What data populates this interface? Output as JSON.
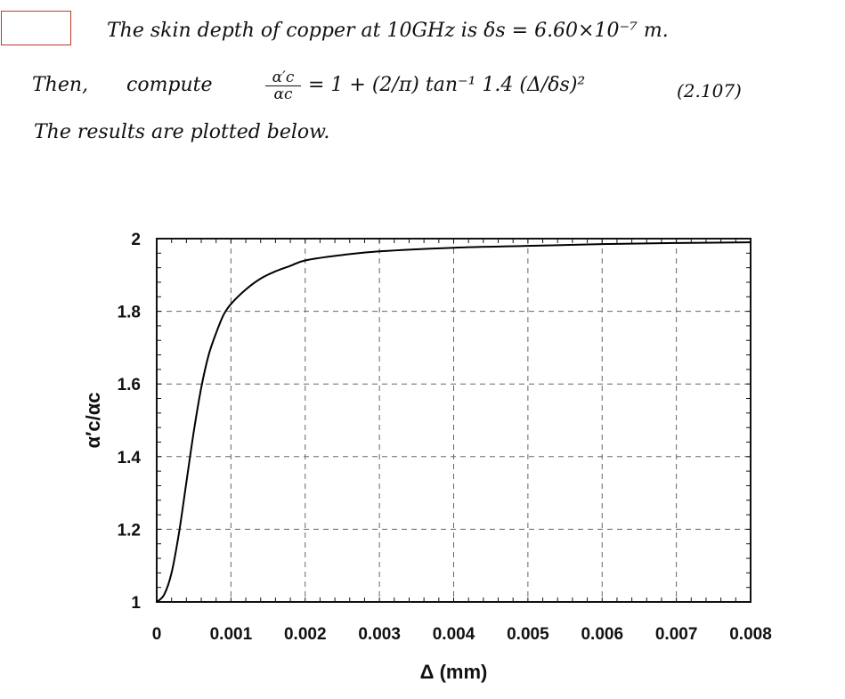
{
  "handwritten_notes": {
    "line1": "The skin depth of copper at 10GHz is δs = 6.60×10⁻⁷ m.",
    "line2_prefix": "Then,",
    "line2_verb": "compute",
    "frac_num": "α′c",
    "frac_den": "αc",
    "line2_rhs": "= 1 + (2/π) tan⁻¹ 1.4 (Δ/δs)²",
    "eq_number": "(2.107)",
    "line3": "The results are plotted below."
  },
  "chart_data": {
    "type": "line",
    "title": "",
    "xlabel": "Δ (mm)",
    "ylabel": "α′c/αc",
    "xlim": [
      0,
      0.008
    ],
    "ylim": [
      1,
      2
    ],
    "xticks": [
      "0",
      "0.001",
      "0.002",
      "0.003",
      "0.004",
      "0.005",
      "0.006",
      "0.007",
      "0.008"
    ],
    "yticks": [
      "1",
      "1.2",
      "1.4",
      "1.6",
      "1.8",
      "2"
    ],
    "grid": true,
    "series": [
      {
        "x": [
          0,
          0.0001,
          0.0002,
          0.0003,
          0.0004,
          0.0005,
          0.0006,
          0.0007,
          0.0008,
          0.0009,
          0.001,
          0.0012,
          0.0014,
          0.0016,
          0.0018,
          0.002,
          0.0025,
          0.003,
          0.004,
          0.005,
          0.006,
          0.007,
          0.008
        ],
        "y": [
          1.0,
          1.02,
          1.08,
          1.19,
          1.33,
          1.47,
          1.59,
          1.68,
          1.74,
          1.79,
          1.82,
          1.86,
          1.89,
          1.91,
          1.925,
          1.94,
          1.955,
          1.965,
          1.975,
          1.98,
          1.985,
          1.988,
          1.99
        ],
        "color": "#000000"
      }
    ]
  }
}
